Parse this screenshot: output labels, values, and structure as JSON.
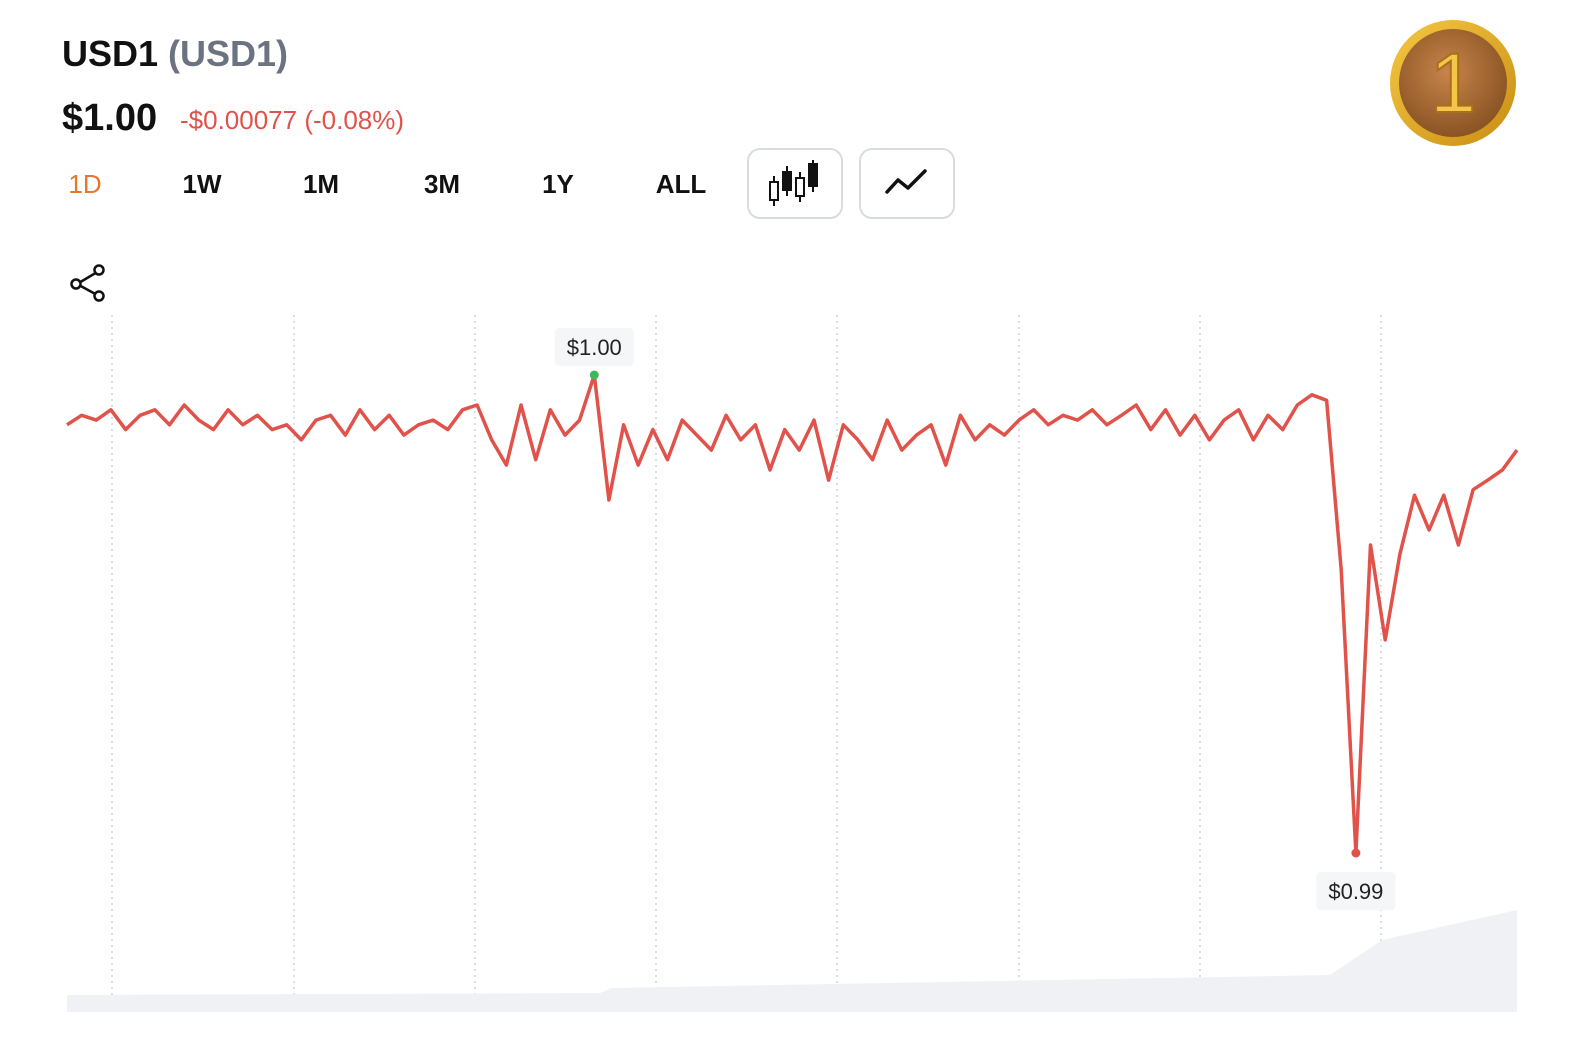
{
  "header": {
    "name": "USD1",
    "symbol": "(USD1)",
    "price": "$1.00",
    "change": "-$0.00077 (-0.08%)",
    "logo": "1"
  },
  "tabs": [
    "1D",
    "1W",
    "1M",
    "3M",
    "1Y",
    "ALL"
  ],
  "chart_data": {
    "type": "line",
    "color": "#e0524a",
    "high_color": "#3cb95c",
    "low_color": "#e0524a",
    "high_label": "$1.00",
    "low_label": "$0.99",
    "values": [
      1.00027,
      1.00041,
      1.00034,
      1.00049,
      1.0002,
      1.00041,
      1.00049,
      1.00027,
      1.00056,
      1.00034,
      1.0002,
      1.00049,
      1.00027,
      1.00041,
      1.0002,
      1.00027,
      1.00005,
      1.00034,
      1.00041,
      1.00012,
      1.00049,
      1.0002,
      1.00041,
      1.00012,
      1.00027,
      1.00034,
      1.0002,
      1.00049,
      1.00056,
      1.00005,
      0.99968,
      1.00056,
      0.99976,
      1.00049,
      1.00012,
      1.00034,
      1.001,
      0.99917,
      1.00027,
      0.99968,
      1.0002,
      0.99976,
      1.00034,
      1.00012,
      0.9999,
      1.00041,
      1.00005,
      1.00027,
      0.99961,
      1.0002,
      0.9999,
      1.00034,
      0.99946,
      1.00027,
      1.00005,
      0.99976,
      1.00034,
      0.9999,
      1.00012,
      1.00027,
      0.99968,
      1.00041,
      1.00005,
      1.00027,
      1.00012,
      1.00034,
      1.00049,
      1.00027,
      1.00041,
      1.00034,
      1.00049,
      1.00027,
      1.00041,
      1.00056,
      1.0002,
      1.00049,
      1.00012,
      1.00041,
      1.00005,
      1.00034,
      1.00049,
      1.00005,
      1.00041,
      1.0002,
      1.00056,
      1.00071,
      1.00063,
      0.99815,
      0.994,
      0.99851,
      0.99712,
      0.99837,
      0.99924,
      0.99873,
      0.99924,
      0.99851,
      0.99932,
      0.99946,
      0.99961,
      0.9999
    ]
  }
}
